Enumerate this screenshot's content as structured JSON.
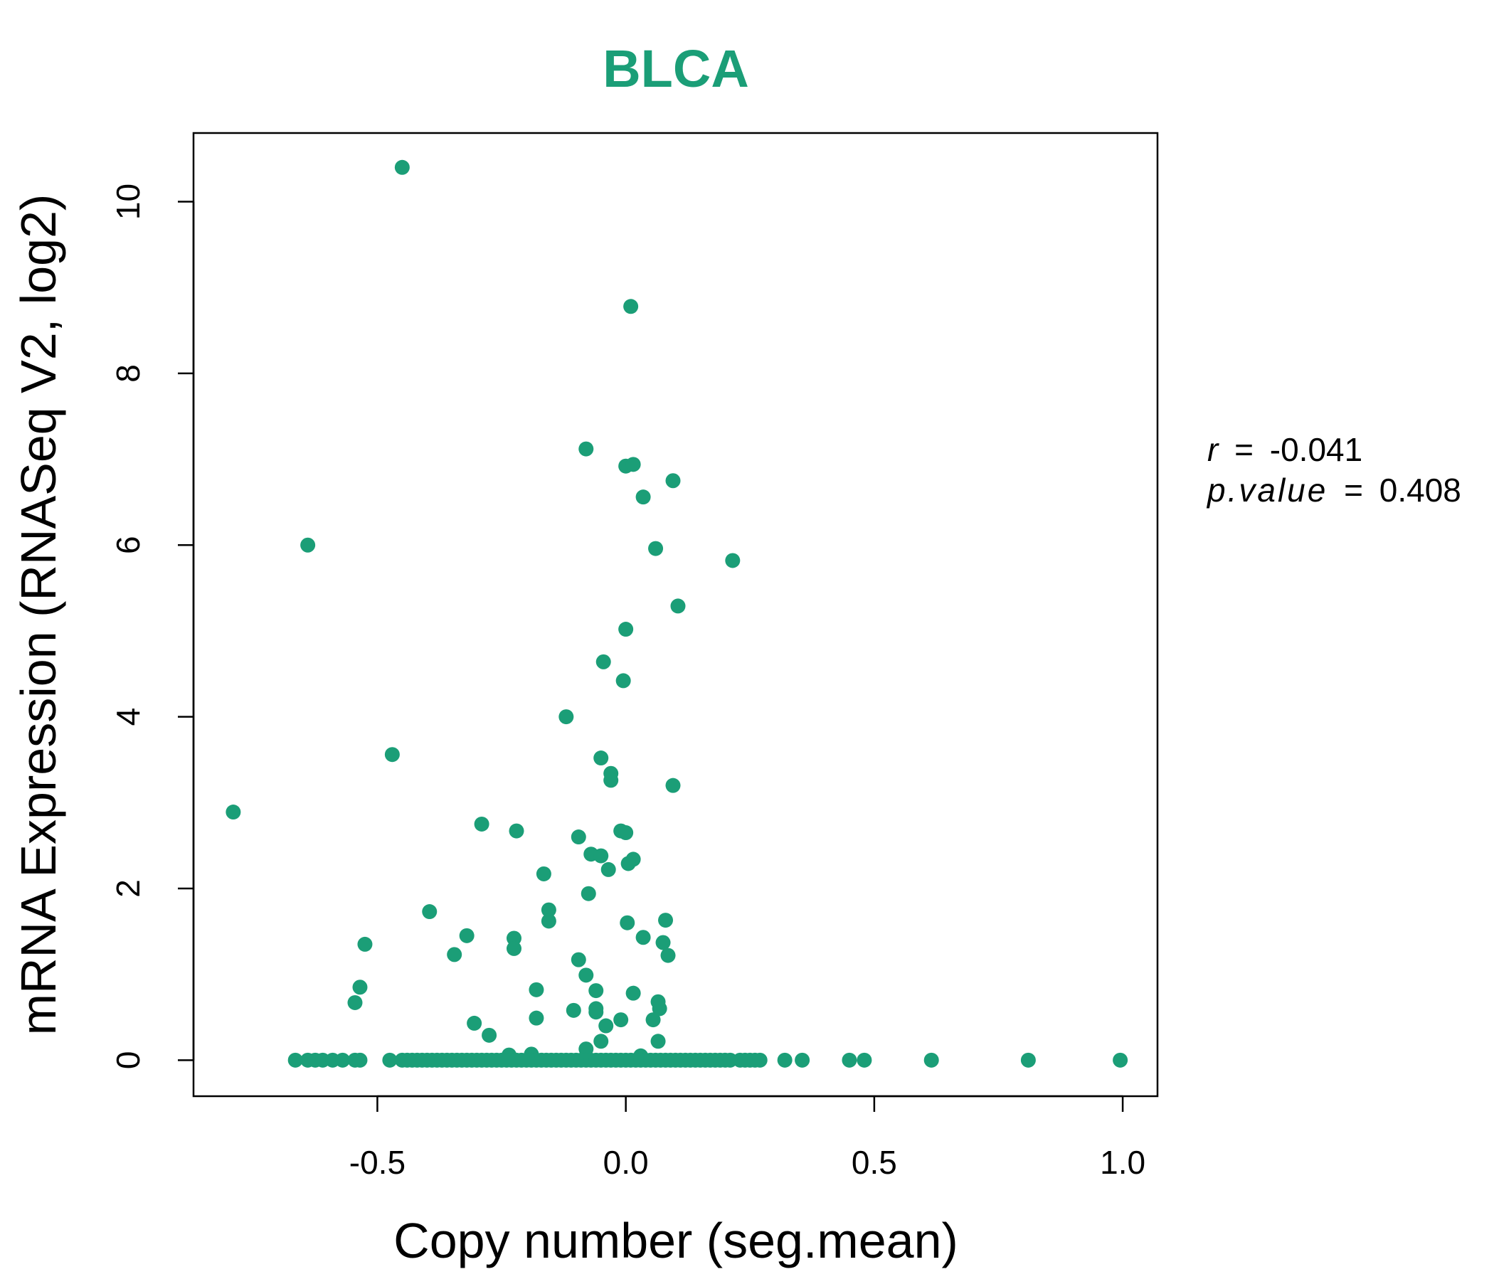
{
  "chart_data": {
    "type": "scatter",
    "title": "BLCA",
    "xlabel": "Copy number (seg.mean)",
    "ylabel": "mRNA Expression (RNASeq V2, log2)",
    "xlim": [
      -0.87,
      1.07
    ],
    "ylim": [
      -0.42,
      10.8
    ],
    "x_ticks": [
      -0.5,
      0.0,
      0.5,
      1.0
    ],
    "x_tick_labels": [
      "-0.5",
      "0.0",
      "0.5",
      "1.0"
    ],
    "y_ticks": [
      0,
      2,
      4,
      6,
      8,
      10
    ],
    "y_tick_labels": [
      "0",
      "2",
      "4",
      "6",
      "8",
      "10"
    ],
    "point_color": "#1b9e77",
    "title_color": "#1b9e77",
    "grid": false,
    "stats": {
      "r_label": "r",
      "r_value": "-0.041",
      "p_label": "p.value",
      "p_value": "0.408",
      "equals": "="
    },
    "points": [
      [
        -0.45,
        10.4
      ],
      [
        0.01,
        8.78
      ],
      [
        -0.08,
        7.12
      ],
      [
        0.0,
        6.92
      ],
      [
        0.015,
        6.94
      ],
      [
        0.095,
        6.75
      ],
      [
        0.035,
        6.56
      ],
      [
        -0.64,
        6.0
      ],
      [
        0.06,
        5.96
      ],
      [
        0.215,
        5.82
      ],
      [
        0.105,
        5.29
      ],
      [
        0.0,
        5.02
      ],
      [
        -0.045,
        4.64
      ],
      [
        -0.005,
        4.42
      ],
      [
        -0.12,
        4.0
      ],
      [
        -0.47,
        3.56
      ],
      [
        -0.05,
        3.52
      ],
      [
        -0.03,
        3.34
      ],
      [
        -0.03,
        3.26
      ],
      [
        0.095,
        3.2
      ],
      [
        -0.79,
        2.89
      ],
      [
        -0.29,
        2.75
      ],
      [
        -0.22,
        2.67
      ],
      [
        -0.01,
        2.67
      ],
      [
        0.0,
        2.65
      ],
      [
        -0.095,
        2.6
      ],
      [
        -0.07,
        2.4
      ],
      [
        -0.05,
        2.38
      ],
      [
        0.015,
        2.34
      ],
      [
        0.005,
        2.29
      ],
      [
        -0.035,
        2.22
      ],
      [
        -0.165,
        2.17
      ],
      [
        -0.075,
        1.94
      ],
      [
        -0.155,
        1.75
      ],
      [
        -0.395,
        1.73
      ],
      [
        -0.155,
        1.62
      ],
      [
        0.003,
        1.6
      ],
      [
        0.08,
        1.63
      ],
      [
        -0.32,
        1.45
      ],
      [
        -0.225,
        1.42
      ],
      [
        0.035,
        1.43
      ],
      [
        0.075,
        1.37
      ],
      [
        -0.525,
        1.35
      ],
      [
        -0.225,
        1.3
      ],
      [
        -0.345,
        1.23
      ],
      [
        0.085,
        1.22
      ],
      [
        -0.095,
        1.17
      ],
      [
        -0.08,
        0.99
      ],
      [
        -0.535,
        0.85
      ],
      [
        -0.18,
        0.82
      ],
      [
        -0.06,
        0.81
      ],
      [
        0.015,
        0.78
      ],
      [
        0.065,
        0.68
      ],
      [
        -0.545,
        0.67
      ],
      [
        0.068,
        0.6
      ],
      [
        -0.105,
        0.58
      ],
      [
        -0.06,
        0.6
      ],
      [
        -0.06,
        0.56
      ],
      [
        -0.18,
        0.49
      ],
      [
        -0.01,
        0.47
      ],
      [
        0.055,
        0.47
      ],
      [
        -0.305,
        0.43
      ],
      [
        -0.04,
        0.4
      ],
      [
        -0.275,
        0.29
      ],
      [
        -0.05,
        0.22
      ],
      [
        0.065,
        0.22
      ],
      [
        -0.08,
        0.13
      ],
      [
        -0.235,
        0.06
      ],
      [
        -0.19,
        0.07
      ],
      [
        0.03,
        0.05
      ],
      [
        -0.665,
        0.0
      ],
      [
        -0.64,
        0.0
      ],
      [
        -0.625,
        0.0
      ],
      [
        -0.61,
        0.0
      ],
      [
        -0.59,
        0.0
      ],
      [
        -0.57,
        0.0
      ],
      [
        -0.545,
        0.0
      ],
      [
        -0.535,
        0.0
      ],
      [
        -0.475,
        0.0
      ],
      [
        -0.45,
        0.0
      ],
      [
        -0.44,
        0.0
      ],
      [
        -0.43,
        0.0
      ],
      [
        -0.42,
        0.0
      ],
      [
        -0.41,
        0.0
      ],
      [
        -0.4,
        0.0
      ],
      [
        -0.39,
        0.0
      ],
      [
        -0.38,
        0.0
      ],
      [
        -0.37,
        0.0
      ],
      [
        -0.36,
        0.0
      ],
      [
        -0.35,
        0.0
      ],
      [
        -0.34,
        0.0
      ],
      [
        -0.33,
        0.0
      ],
      [
        -0.32,
        0.0
      ],
      [
        -0.31,
        0.0
      ],
      [
        -0.3,
        0.0
      ],
      [
        -0.29,
        0.0
      ],
      [
        -0.28,
        0.0
      ],
      [
        -0.27,
        0.0
      ],
      [
        -0.26,
        0.0
      ],
      [
        -0.25,
        0.0
      ],
      [
        -0.24,
        0.0
      ],
      [
        -0.23,
        0.0
      ],
      [
        -0.22,
        0.0
      ],
      [
        -0.21,
        0.0
      ],
      [
        -0.2,
        0.0
      ],
      [
        -0.19,
        0.0
      ],
      [
        -0.18,
        0.0
      ],
      [
        -0.17,
        0.0
      ],
      [
        -0.16,
        0.0
      ],
      [
        -0.15,
        0.0
      ],
      [
        -0.14,
        0.0
      ],
      [
        -0.13,
        0.0
      ],
      [
        -0.12,
        0.0
      ],
      [
        -0.11,
        0.0
      ],
      [
        -0.1,
        0.0
      ],
      [
        -0.09,
        0.0
      ],
      [
        -0.08,
        0.0
      ],
      [
        -0.07,
        0.0
      ],
      [
        -0.06,
        0.0
      ],
      [
        -0.05,
        0.0
      ],
      [
        -0.04,
        0.0
      ],
      [
        -0.03,
        0.0
      ],
      [
        -0.02,
        0.0
      ],
      [
        -0.01,
        0.0
      ],
      [
        0.0,
        0.0
      ],
      [
        0.01,
        0.0
      ],
      [
        0.02,
        0.0
      ],
      [
        0.03,
        0.0
      ],
      [
        0.04,
        0.0
      ],
      [
        0.05,
        0.0
      ],
      [
        0.06,
        0.0
      ],
      [
        0.07,
        0.0
      ],
      [
        0.08,
        0.0
      ],
      [
        0.09,
        0.0
      ],
      [
        0.1,
        0.0
      ],
      [
        0.11,
        0.0
      ],
      [
        0.12,
        0.0
      ],
      [
        0.13,
        0.0
      ],
      [
        0.14,
        0.0
      ],
      [
        0.15,
        0.0
      ],
      [
        0.16,
        0.0
      ],
      [
        0.17,
        0.0
      ],
      [
        0.18,
        0.0
      ],
      [
        0.19,
        0.0
      ],
      [
        0.2,
        0.0
      ],
      [
        0.21,
        0.0
      ],
      [
        0.23,
        0.0
      ],
      [
        0.24,
        0.0
      ],
      [
        0.25,
        0.0
      ],
      [
        0.26,
        0.0
      ],
      [
        0.27,
        0.0
      ],
      [
        0.32,
        0.0
      ],
      [
        0.355,
        0.0
      ],
      [
        0.45,
        0.0
      ],
      [
        0.48,
        0.0
      ],
      [
        0.615,
        0.0
      ],
      [
        0.81,
        0.0
      ],
      [
        0.995,
        0.0
      ]
    ]
  }
}
